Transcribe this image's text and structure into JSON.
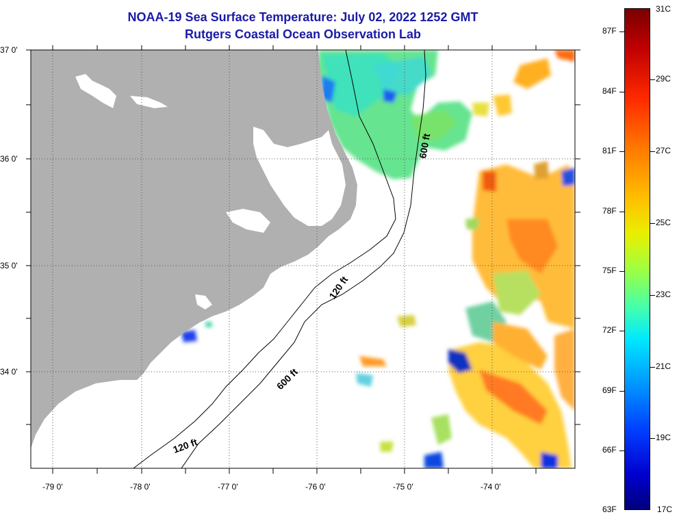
{
  "title": {
    "line1": "NOAA-19 Sea Surface Temperature:  July 02, 2022 1252 GMT",
    "line2": "Rutgers Coastal Ocean Observation Lab"
  },
  "map": {
    "lat_labels": [
      "37 0'",
      "36 0'",
      "35 0'",
      "34 0'"
    ],
    "lon_labels": [
      "-79 0'",
      "-78 0'",
      "-77 0'",
      "-76 0'",
      "-75 0'",
      "-74 0'"
    ],
    "contour_labels": [
      "600 ft",
      "120 ft",
      "600 ft",
      "120 ft"
    ],
    "colors": {
      "land": "#b0b0b0",
      "ocean_no_data": "#ffffff"
    }
  },
  "colorbar": {
    "fahrenheit": [
      "87F",
      "84F",
      "81F",
      "78F",
      "75F",
      "72F",
      "69F",
      "66F",
      "63F"
    ],
    "celsius": [
      "31C",
      "29C",
      "27C",
      "25C",
      "23C",
      "21C",
      "19C",
      "17C"
    ],
    "range_celsius": [
      17,
      31
    ],
    "range_fahrenheit": [
      63,
      87
    ]
  }
}
